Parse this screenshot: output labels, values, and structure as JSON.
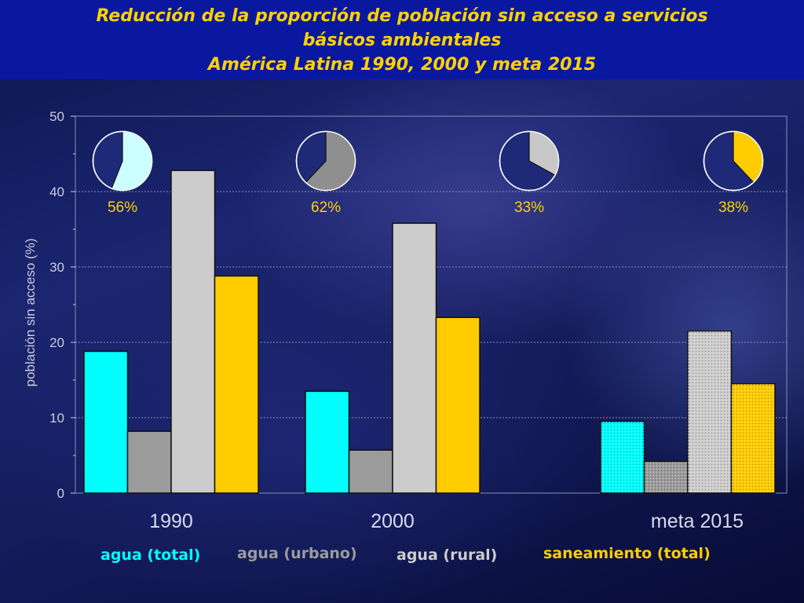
{
  "title": {
    "line1": "Reducción de la proporción de población sin acceso a servicios",
    "line2": "básicos ambientales",
    "line3": "América Latina 1990, 2000 y meta 2015"
  },
  "legend": [
    {
      "label": "agua (total)",
      "color": "#00ffff"
    },
    {
      "label": "agua (urbano)",
      "color": "#9b9b9b"
    },
    {
      "label": "agua (rural)",
      "color": "#cccccc"
    },
    {
      "label": "saneamiento (total)",
      "color": "#ffcc00"
    }
  ],
  "chart_data": {
    "type": "bar",
    "categories": [
      "1990",
      "2000",
      "meta 2015"
    ],
    "series": [
      {
        "name": "agua (total)",
        "color": "#00ffff",
        "values": [
          18.8,
          13.5,
          9.5
        ]
      },
      {
        "name": "agua (urbano)",
        "color": "#9b9b9b",
        "values": [
          8.2,
          5.7,
          4.2
        ]
      },
      {
        "name": "agua (rural)",
        "color": "#cccccc",
        "values": [
          42.8,
          35.8,
          21.5
        ]
      },
      {
        "name": "saneamiento (total)",
        "color": "#ffcc00",
        "values": [
          28.8,
          23.3,
          14.5
        ]
      }
    ],
    "hatched_categories": [
      "meta 2015"
    ],
    "ylabel": "población sin acceso (%)",
    "ylim": [
      0,
      50
    ],
    "yticks": [
      0,
      10,
      20,
      30,
      40,
      50
    ],
    "grid": true,
    "pies": [
      {
        "percent": 56,
        "label": "56%",
        "color": "#ccffff"
      },
      {
        "percent": 62,
        "label": "62%",
        "color": "#8f8f8f"
      },
      {
        "percent": 33,
        "label": "33%",
        "color": "#c8c8c8"
      },
      {
        "percent": 38,
        "label": "38%",
        "color": "#ffcc00"
      }
    ]
  }
}
